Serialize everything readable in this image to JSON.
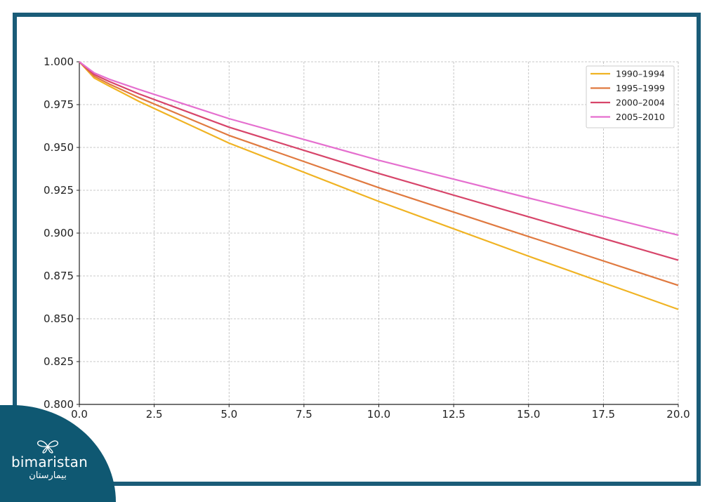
{
  "chart_data": {
    "type": "line",
    "title": "",
    "xlabel": "",
    "ylabel": "",
    "xlim": [
      0,
      20
    ],
    "ylim": [
      0.8,
      1.0
    ],
    "x_ticks": [
      "0.0",
      "2.5",
      "5.0",
      "7.5",
      "10.0",
      "12.5",
      "15.0",
      "17.5",
      "20.0"
    ],
    "y_ticks": [
      "0.800",
      "0.825",
      "0.850",
      "0.875",
      "0.900",
      "0.925",
      "0.950",
      "0.975",
      "1.000"
    ],
    "grid": true,
    "legend_position": "top-right",
    "x": [
      0,
      0.5,
      1,
      2,
      5,
      10,
      15,
      20
    ],
    "series": [
      {
        "name": "1990–1994",
        "color": "#f0b323",
        "values": [
          1.0,
          0.9905,
          0.9858,
          0.9768,
          0.9525,
          0.9185,
          0.8865,
          0.8555
        ]
      },
      {
        "name": "1995–1999",
        "color": "#e07a40",
        "values": [
          1.0,
          0.9915,
          0.987,
          0.979,
          0.957,
          0.9265,
          0.898,
          0.8695
        ]
      },
      {
        "name": "2000–2004",
        "color": "#d7456a",
        "values": [
          1.0,
          0.9925,
          0.9885,
          0.9812,
          0.9618,
          0.9348,
          0.9095,
          0.8842
        ]
      },
      {
        "name": "2005–2010",
        "color": "#e56fcf",
        "values": [
          1.0,
          0.9935,
          0.9898,
          0.9838,
          0.9668,
          0.9425,
          0.9205,
          0.8988
        ]
      }
    ]
  },
  "brand": {
    "name": "bimaristan",
    "arabic": "بيمارستان",
    "color": "#0f5872",
    "frame_color": "#1a5c78"
  }
}
